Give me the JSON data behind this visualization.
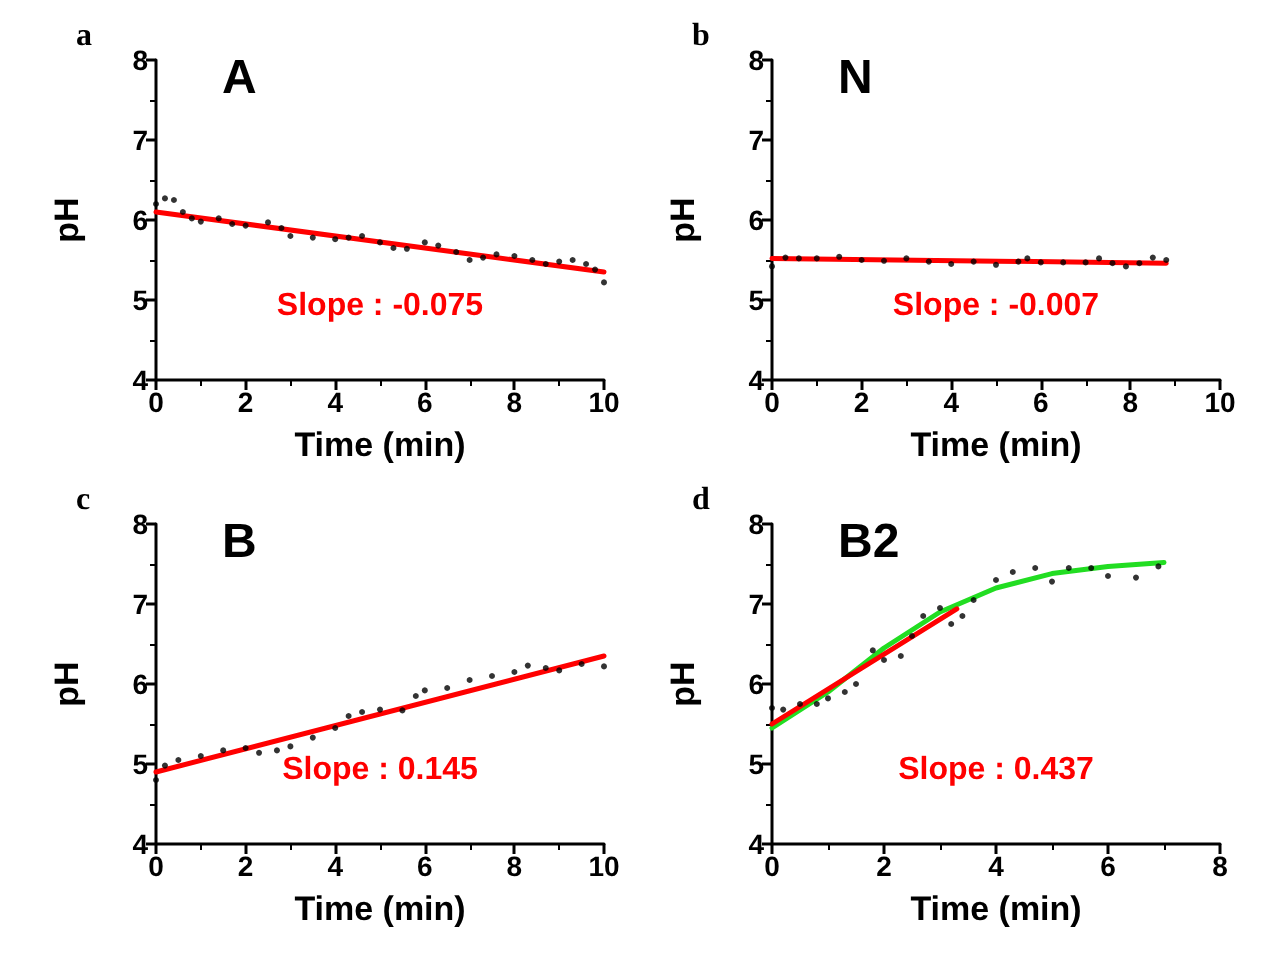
{
  "chart_data": [
    {
      "type": "scatter",
      "title": "A",
      "xlabel": "Time (min)",
      "ylabel": "pH",
      "xlim": [
        0,
        10
      ],
      "ylim": [
        4,
        8
      ],
      "xticks": [
        0,
        2,
        4,
        6,
        8,
        10
      ],
      "yticks": [
        4,
        5,
        6,
        7,
        8
      ],
      "grid": false,
      "annotations": [
        "a",
        "Slope : -0.075"
      ],
      "series": [
        {
          "marker": "circle",
          "color": "#000000",
          "x": [
            0,
            0.2,
            0.4,
            0.6,
            0.8,
            1,
            1.4,
            1.7,
            2,
            2.5,
            2.8,
            3,
            3.5,
            4,
            4.3,
            4.6,
            5,
            5.3,
            5.6,
            6,
            6.3,
            6.7,
            7,
            7.3,
            7.6,
            8,
            8.4,
            8.7,
            9,
            9.3,
            9.6,
            9.8,
            10
          ],
          "values": [
            6.2,
            6.27,
            6.25,
            6.1,
            6.02,
            5.98,
            6.02,
            5.95,
            5.93,
            5.97,
            5.9,
            5.8,
            5.78,
            5.76,
            5.78,
            5.8,
            5.72,
            5.65,
            5.64,
            5.72,
            5.68,
            5.6,
            5.5,
            5.53,
            5.57,
            5.55,
            5.5,
            5.45,
            5.48,
            5.5,
            5.45,
            5.38,
            5.22
          ]
        },
        {
          "type": "line",
          "marker": "none",
          "color": "#ff0000",
          "x": [
            0,
            10
          ],
          "values": [
            6.1,
            5.35
          ]
        }
      ]
    },
    {
      "type": "scatter",
      "title": "N",
      "xlabel": "Time (min)",
      "ylabel": "pH",
      "xlim": [
        0,
        10
      ],
      "ylim": [
        4,
        8
      ],
      "xticks": [
        0,
        2,
        4,
        6,
        8,
        10
      ],
      "yticks": [
        4,
        5,
        6,
        7,
        8
      ],
      "grid": false,
      "annotations": [
        "b",
        "Slope : -0.007"
      ],
      "series": [
        {
          "marker": "circle",
          "color": "#000000",
          "x": [
            0,
            0.3,
            0.6,
            1,
            1.5,
            2,
            2.5,
            3,
            3.5,
            4,
            4.5,
            5,
            5.5,
            5.7,
            6,
            6.5,
            7,
            7.3,
            7.6,
            7.9,
            8.2,
            8.5,
            8.8
          ],
          "values": [
            5.42,
            5.53,
            5.52,
            5.52,
            5.54,
            5.5,
            5.49,
            5.52,
            5.48,
            5.45,
            5.48,
            5.44,
            5.48,
            5.52,
            5.47,
            5.47,
            5.47,
            5.52,
            5.46,
            5.42,
            5.46,
            5.53,
            5.5
          ]
        },
        {
          "type": "line",
          "marker": "none",
          "color": "#ff0000",
          "x": [
            0,
            8.8
          ],
          "values": [
            5.52,
            5.46
          ]
        }
      ]
    },
    {
      "type": "scatter",
      "title": "B",
      "xlabel": "Time (min)",
      "ylabel": "pH",
      "xlim": [
        0,
        10
      ],
      "ylim": [
        4,
        8
      ],
      "xticks": [
        0,
        2,
        4,
        6,
        8,
        10
      ],
      "yticks": [
        4,
        5,
        6,
        7,
        8
      ],
      "grid": false,
      "annotations": [
        "c",
        "Slope : 0.145"
      ],
      "series": [
        {
          "marker": "circle",
          "color": "#000000",
          "x": [
            0,
            0.2,
            0.5,
            1,
            1.5,
            2,
            2.3,
            2.7,
            3,
            3.5,
            4,
            4.3,
            4.6,
            5,
            5.5,
            5.8,
            6,
            6.5,
            7,
            7.5,
            8,
            8.3,
            8.7,
            9,
            9.5,
            10
          ],
          "values": [
            4.8,
            4.98,
            5.05,
            5.1,
            5.17,
            5.2,
            5.14,
            5.17,
            5.22,
            5.33,
            5.45,
            5.6,
            5.65,
            5.68,
            5.67,
            5.85,
            5.92,
            5.95,
            6.05,
            6.1,
            6.15,
            6.23,
            6.2,
            6.17,
            6.25,
            6.22
          ]
        },
        {
          "type": "line",
          "marker": "none",
          "color": "#ff0000",
          "x": [
            0,
            10
          ],
          "values": [
            4.9,
            6.35
          ]
        }
      ]
    },
    {
      "type": "scatter",
      "title": "B2",
      "xlabel": "Time (min)",
      "ylabel": "pH",
      "xlim": [
        0,
        8
      ],
      "ylim": [
        4,
        8
      ],
      "xticks": [
        0,
        2,
        4,
        6,
        8
      ],
      "yticks": [
        4,
        5,
        6,
        7,
        8
      ],
      "grid": false,
      "annotations": [
        "d",
        "Slope : 0.437"
      ],
      "series": [
        {
          "marker": "circle",
          "color": "#000000",
          "x": [
            0,
            0.2,
            0.5,
            0.8,
            1,
            1.3,
            1.5,
            1.8,
            2,
            2.3,
            2.5,
            2.7,
            3,
            3.2,
            3.4,
            3.6,
            4,
            4.3,
            4.7,
            5,
            5.3,
            5.7,
            6,
            6.5,
            6.9
          ],
          "values": [
            5.7,
            5.68,
            5.75,
            5.75,
            5.82,
            5.9,
            6.0,
            6.42,
            6.3,
            6.35,
            6.6,
            6.85,
            6.95,
            6.75,
            6.85,
            7.05,
            7.3,
            7.4,
            7.45,
            7.28,
            7.45,
            7.45,
            7.35,
            7.33,
            7.47
          ]
        },
        {
          "type": "line",
          "marker": "none",
          "color": "#22dd22",
          "x": [
            0,
            1,
            2,
            3,
            4,
            5,
            6,
            7
          ],
          "values": [
            5.45,
            5.9,
            6.45,
            6.9,
            7.2,
            7.38,
            7.47,
            7.52
          ]
        },
        {
          "type": "line",
          "marker": "none",
          "color": "#ff0000",
          "x": [
            0,
            3.3
          ],
          "values": [
            5.5,
            6.94
          ]
        }
      ]
    }
  ]
}
